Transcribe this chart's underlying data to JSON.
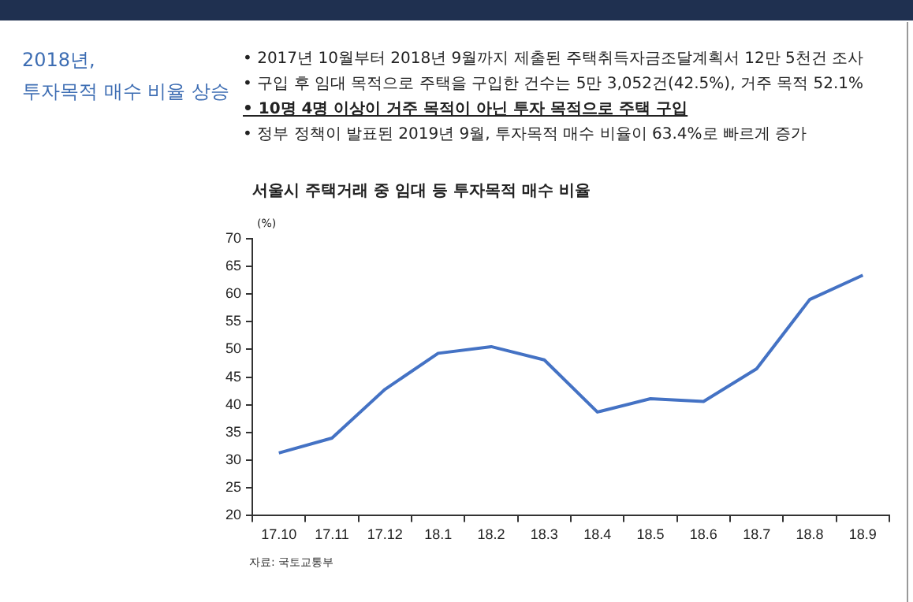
{
  "chart_data": {
    "type": "line",
    "title": "서울시 주택거래 중 임대 등 투자목적 매수 비율",
    "ylabel": "(%)",
    "annotations": [
      "2018년,\n투자목적 매수 비율 상승",
      "• 2017년 10월부터 2018년 9월까지 제출된 주택취득자금조달계획서 12만 5천건 조사",
      "• 구입 후 임대 목적으로 주택을 구입한 건수는 5만 3,052건(42.5%), 거주 목적 52.1%",
      "• 10명 4명 이상이 거주 목적이 아닌 투자 목적으로 주택 구입",
      "• 정부 정책이 발표된 2019년 9월, 투자목적 매수 비율이 63.4%로 빠르게 증가",
      "자료: 국토교통부"
    ],
    "categories": [
      "17.10",
      "17.11",
      "17.12",
      "18.1",
      "18.2",
      "18.3",
      "18.4",
      "18.5",
      "18.6",
      "18.7",
      "18.8",
      "18.9"
    ],
    "series": [
      {
        "color": "#4472c4",
        "values": [
          31.3,
          34,
          42.8,
          49.3,
          50.5,
          48.1,
          38.7,
          41.1,
          40.6,
          46.5,
          59,
          63.4
        ]
      }
    ],
    "ylim": [
      20,
      70
    ],
    "yticks": [
      20,
      25,
      30,
      35,
      40,
      45,
      50,
      55,
      60,
      65,
      70
    ],
    "grid": false,
    "legend": false,
    "marker": "none",
    "line_style": "solid"
  }
}
